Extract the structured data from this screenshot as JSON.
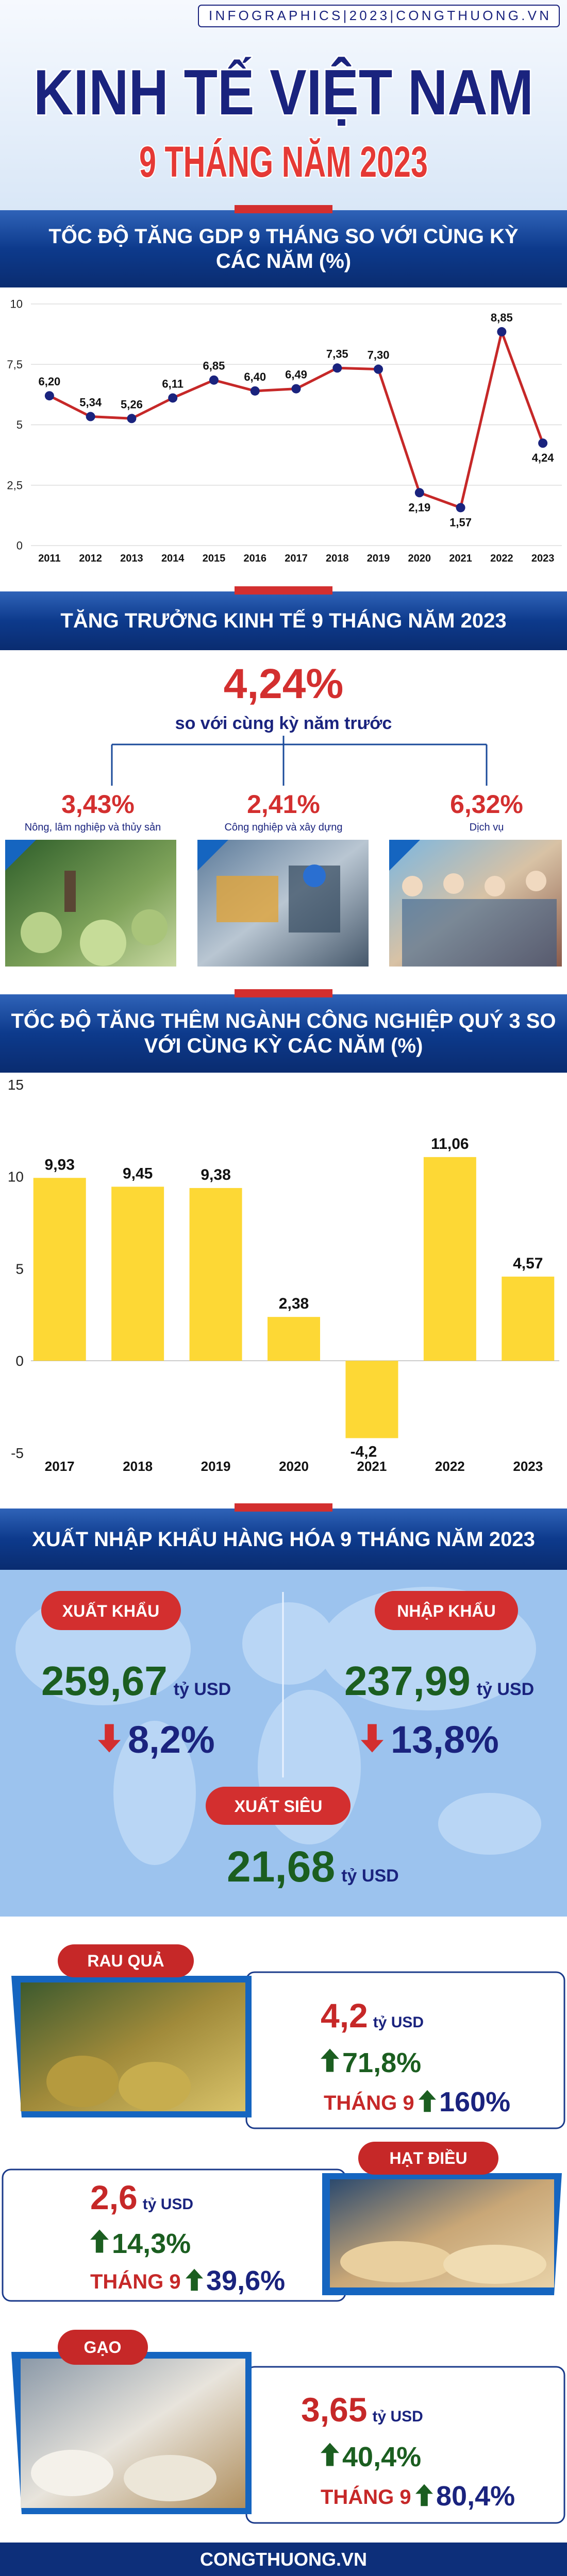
{
  "header": {
    "tagline": "INFOGRAPHICS|2023|CONGTHUONG.VN",
    "title": "KINH TẾ VIỆT NAM",
    "subtitle": "9 THÁNG NĂM 2023"
  },
  "chart_data": [
    {
      "type": "line",
      "title": "TỐC ĐỘ TĂNG GDP 9 THÁNG SO VỚI CÙNG KỲ CÁC NĂM (%)",
      "categories": [
        "2011",
        "2012",
        "2013",
        "2014",
        "2015",
        "2016",
        "2017",
        "2018",
        "2019",
        "2020",
        "2021",
        "2022",
        "2023"
      ],
      "values": [
        6.2,
        5.34,
        5.26,
        6.11,
        6.85,
        6.4,
        6.49,
        7.35,
        7.3,
        2.19,
        1.57,
        8.85,
        4.24
      ],
      "value_labels": [
        "6,20",
        "5,34",
        "5,26",
        "6,11",
        "6,85",
        "6,40",
        "6,49",
        "7,35",
        "7,30",
        "2,19",
        "1,57",
        "8,85",
        "4,24"
      ],
      "color": "#c62828",
      "marker_color": "#1a237e",
      "ylim": [
        0,
        10
      ],
      "yticks": [
        0,
        {
          "value": 2.5,
          "label": "2,5"
        },
        5,
        {
          "value": 7.5,
          "label": "7,5"
        },
        10
      ],
      "grid": true
    },
    {
      "type": "bar",
      "title": "TỐC ĐỘ TĂNG THÊM NGÀNH CÔNG NGHIỆP QUÝ 3 SO VỚI CÙNG KỲ CÁC NĂM (%)",
      "categories": [
        "2017",
        "2018",
        "2019",
        "2020",
        "2021",
        "2022",
        "2023"
      ],
      "values": [
        9.93,
        9.45,
        9.38,
        2.38,
        -4.2,
        11.06,
        4.57
      ],
      "value_labels": [
        "9,93",
        "9,45",
        "9,38",
        "2,38",
        "-4,2",
        "11,06",
        "4,57"
      ],
      "color": "#fdd835",
      "ylim": [
        -5,
        15
      ],
      "yticks": [
        -5,
        0,
        5,
        10,
        15
      ],
      "grid": false
    }
  ],
  "growth": {
    "title": "TĂNG TRƯỞNG KINH TẾ 9 THÁNG NĂM 2023",
    "total": "4,24%",
    "total_note": "so với cùng kỳ năm trước",
    "sectors": [
      {
        "value": "3,43%",
        "label": "Nông, lâm nghiệp và thủy sản"
      },
      {
        "value": "2,41%",
        "label": "Công nghiệp và xây dựng"
      },
      {
        "value": "6,32%",
        "label": "Dịch vụ"
      }
    ]
  },
  "trade": {
    "title": "XUẤT NHẬP KHẨU HÀNG HÓA 9 THÁNG NĂM 2023",
    "export": {
      "label": "XUẤT KHẨU",
      "value": "259,67",
      "unit": "tỷ USD",
      "change": "8,2%"
    },
    "import": {
      "label": "NHẬP KHẨU",
      "value": "237,99",
      "unit": "tỷ USD",
      "change": "13,8%"
    },
    "surplus": {
      "label": "XUẤT SIÊU",
      "value": "21,68",
      "unit": "tỷ USD"
    }
  },
  "products": [
    {
      "name": "RAU QUẢ",
      "value": "4,2",
      "unit": "tỷ USD",
      "change": "71,8%",
      "month_label": "THÁNG 9",
      "month_change": "160%"
    },
    {
      "name": "HẠT ĐIỀU",
      "value": "2,6",
      "unit": "tỷ USD",
      "change": "14,3%",
      "month_label": "THÁNG 9",
      "month_change": "39,6%"
    },
    {
      "name": "GẠO",
      "value": "3,65",
      "unit": "tỷ USD",
      "change": "40,4%",
      "month_label": "THÁNG 9",
      "month_change": "80,4%"
    }
  ],
  "footer": "CONGTHUONG.VN"
}
